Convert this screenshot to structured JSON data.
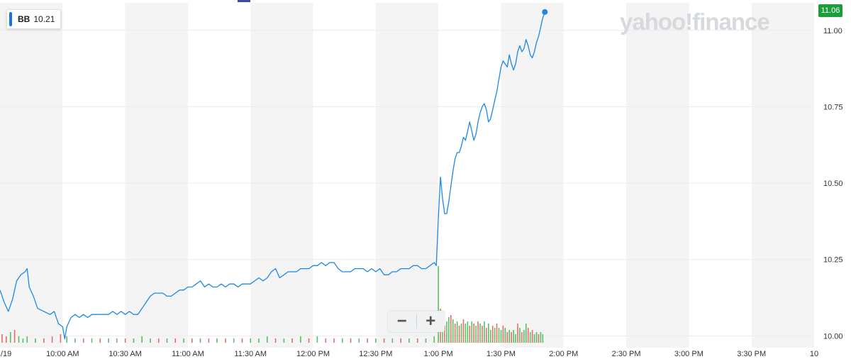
{
  "legend": {
    "symbol": "BB",
    "value": "10.21",
    "color": "#1a73e8"
  },
  "brand": "yahoo!finance",
  "last_price_label": "11.06",
  "zoom": {
    "minus": "−",
    "plus": "+"
  },
  "colors": {
    "line": "#1e88e5",
    "up": "#39b54a",
    "down": "#e5534b",
    "band": "#f4f4f5",
    "grid": "#ececee",
    "last": "#1a9e3a"
  },
  "chart_data": {
    "type": "line",
    "symbol": "BB",
    "ylim": [
      9.98,
      11.09
    ],
    "yticks": [
      10.0,
      10.25,
      10.5,
      10.75,
      11.0
    ],
    "ytick_labels": [
      "10.00",
      "10.25",
      "10.50",
      "10.75",
      "11.00"
    ],
    "x_domain": [
      "09:30",
      "16:00"
    ],
    "xticks": [
      "09:30",
      "10:00",
      "10:30",
      "11:00",
      "11:30",
      "12:00",
      "12:30",
      "13:00",
      "13:30",
      "14:00",
      "14:30",
      "15:00",
      "15:30",
      "16:00"
    ],
    "xtick_labels": [
      "/19",
      "10:00 AM",
      "10:30 AM",
      "11:00 AM",
      "11:30 AM",
      "12:00 PM",
      "12:30 PM",
      "1:00 PM",
      "1:30 PM",
      "2:00 PM",
      "2:30 PM",
      "3:00 PM",
      "3:30 PM",
      "10"
    ],
    "last_price": 11.06,
    "series": [
      {
        "values": [
          [
            "09:30",
            10.15
          ],
          [
            "09:32",
            10.11
          ],
          [
            "09:34",
            10.08
          ],
          [
            "09:36",
            10.12
          ],
          [
            "09:38",
            10.18
          ],
          [
            "09:40",
            10.2
          ],
          [
            "09:42",
            10.21
          ],
          [
            "09:43",
            10.22
          ],
          [
            "09:44",
            10.16
          ],
          [
            "09:46",
            10.13
          ],
          [
            "09:48",
            10.09
          ],
          [
            "09:51",
            10.08
          ],
          [
            "09:54",
            10.07
          ],
          [
            "09:56",
            10.08
          ],
          [
            "09:58",
            10.04
          ],
          [
            "10:00",
            10.03
          ],
          [
            "10:01",
            9.99
          ],
          [
            "10:02",
            10.03
          ],
          [
            "10:04",
            10.06
          ],
          [
            "10:06",
            10.07
          ],
          [
            "10:08",
            10.06
          ],
          [
            "10:10",
            10.07
          ],
          [
            "10:12",
            10.06
          ],
          [
            "10:14",
            10.07
          ],
          [
            "10:16",
            10.07
          ],
          [
            "10:18",
            10.07
          ],
          [
            "10:20",
            10.07
          ],
          [
            "10:22",
            10.07
          ],
          [
            "10:24",
            10.08
          ],
          [
            "10:26",
            10.07
          ],
          [
            "10:28",
            10.08
          ],
          [
            "10:30",
            10.07
          ],
          [
            "10:32",
            10.08
          ],
          [
            "10:34",
            10.07
          ],
          [
            "10:36",
            10.07
          ],
          [
            "10:38",
            10.09
          ],
          [
            "10:40",
            10.11
          ],
          [
            "10:42",
            10.13
          ],
          [
            "10:44",
            10.14
          ],
          [
            "10:46",
            10.14
          ],
          [
            "10:48",
            10.14
          ],
          [
            "10:50",
            10.13
          ],
          [
            "10:52",
            10.13
          ],
          [
            "10:54",
            10.14
          ],
          [
            "10:56",
            10.15
          ],
          [
            "10:58",
            10.15
          ],
          [
            "11:00",
            10.16
          ],
          [
            "11:02",
            10.16
          ],
          [
            "11:04",
            10.17
          ],
          [
            "11:06",
            10.18
          ],
          [
            "11:08",
            10.16
          ],
          [
            "11:10",
            10.17
          ],
          [
            "11:12",
            10.16
          ],
          [
            "11:14",
            10.16
          ],
          [
            "11:16",
            10.17
          ],
          [
            "11:18",
            10.16
          ],
          [
            "11:20",
            10.17
          ],
          [
            "11:22",
            10.17
          ],
          [
            "11:24",
            10.16
          ],
          [
            "11:26",
            10.17
          ],
          [
            "11:28",
            10.17
          ],
          [
            "11:30",
            10.17
          ],
          [
            "11:32",
            10.18
          ],
          [
            "11:34",
            10.19
          ],
          [
            "11:36",
            10.18
          ],
          [
            "11:38",
            10.19
          ],
          [
            "11:40",
            10.21
          ],
          [
            "11:42",
            10.22
          ],
          [
            "11:44",
            10.19
          ],
          [
            "11:46",
            10.2
          ],
          [
            "11:48",
            10.21
          ],
          [
            "11:50",
            10.21
          ],
          [
            "11:52",
            10.21
          ],
          [
            "11:54",
            10.22
          ],
          [
            "11:56",
            10.22
          ],
          [
            "11:58",
            10.22
          ],
          [
            "12:00",
            10.23
          ],
          [
            "12:02",
            10.23
          ],
          [
            "12:04",
            10.24
          ],
          [
            "12:06",
            10.23
          ],
          [
            "12:08",
            10.24
          ],
          [
            "12:10",
            10.24
          ],
          [
            "12:12",
            10.22
          ],
          [
            "12:14",
            10.21
          ],
          [
            "12:16",
            10.21
          ],
          [
            "12:18",
            10.21
          ],
          [
            "12:20",
            10.22
          ],
          [
            "12:22",
            10.22
          ],
          [
            "12:24",
            10.22
          ],
          [
            "12:26",
            10.21
          ],
          [
            "12:28",
            10.22
          ],
          [
            "12:30",
            10.21
          ],
          [
            "12:32",
            10.22
          ],
          [
            "12:34",
            10.2
          ],
          [
            "12:36",
            10.2
          ],
          [
            "12:38",
            10.21
          ],
          [
            "12:40",
            10.21
          ],
          [
            "12:42",
            10.22
          ],
          [
            "12:44",
            10.22
          ],
          [
            "12:46",
            10.22
          ],
          [
            "12:48",
            10.23
          ],
          [
            "12:50",
            10.23
          ],
          [
            "12:52",
            10.22
          ],
          [
            "12:54",
            10.22
          ],
          [
            "12:56",
            10.23
          ],
          [
            "12:58",
            10.24
          ],
          [
            "12:59",
            10.23
          ],
          [
            "13:00",
            10.39
          ],
          [
            "13:01",
            10.52
          ],
          [
            "13:02",
            10.45
          ],
          [
            "13:03",
            10.4
          ],
          [
            "13:04",
            10.4
          ],
          [
            "13:05",
            10.44
          ],
          [
            "13:06",
            10.49
          ],
          [
            "13:07",
            10.54
          ],
          [
            "13:08",
            10.58
          ],
          [
            "13:09",
            10.6
          ],
          [
            "13:10",
            10.6
          ],
          [
            "13:11",
            10.62
          ],
          [
            "13:12",
            10.65
          ],
          [
            "13:13",
            10.64
          ],
          [
            "13:14",
            10.67
          ],
          [
            "13:15",
            10.7
          ],
          [
            "13:16",
            10.67
          ],
          [
            "13:17",
            10.64
          ],
          [
            "13:18",
            10.66
          ],
          [
            "13:19",
            10.7
          ],
          [
            "13:20",
            10.73
          ],
          [
            "13:21",
            10.75
          ],
          [
            "13:22",
            10.76
          ],
          [
            "13:23",
            10.74
          ],
          [
            "13:24",
            10.7
          ],
          [
            "13:25",
            10.71
          ],
          [
            "13:26",
            10.74
          ],
          [
            "13:27",
            10.77
          ],
          [
            "13:28",
            10.8
          ],
          [
            "13:29",
            10.84
          ],
          [
            "13:30",
            10.88
          ],
          [
            "13:31",
            10.9
          ],
          [
            "13:32",
            10.89
          ],
          [
            "13:33",
            10.88
          ],
          [
            "13:34",
            10.92
          ],
          [
            "13:35",
            10.89
          ],
          [
            "13:36",
            10.87
          ],
          [
            "13:37",
            10.89
          ],
          [
            "13:38",
            10.93
          ],
          [
            "13:39",
            10.95
          ],
          [
            "13:40",
            10.93
          ],
          [
            "13:41",
            10.94
          ],
          [
            "13:42",
            10.97
          ],
          [
            "13:43",
            10.95
          ],
          [
            "13:44",
            10.92
          ],
          [
            "13:45",
            10.91
          ],
          [
            "13:46",
            10.93
          ],
          [
            "13:47",
            10.96
          ],
          [
            "13:48",
            10.98
          ],
          [
            "13:49",
            11.01
          ],
          [
            "13:50",
            11.04
          ],
          [
            "13:51",
            11.06
          ]
        ]
      }
    ],
    "volume": {
      "unit": "relative",
      "bars": [
        [
          "09:31",
          0.4,
          "down"
        ],
        [
          "09:33",
          0.3,
          "down"
        ],
        [
          "09:35",
          0.5,
          "up"
        ],
        [
          "09:37",
          0.6,
          "down"
        ],
        [
          "09:39",
          0.3,
          "up"
        ],
        [
          "09:41",
          0.2,
          "up"
        ],
        [
          "09:43",
          0.3,
          "up"
        ],
        [
          "09:47",
          0.2,
          "up"
        ],
        [
          "09:51",
          0.2,
          "down"
        ],
        [
          "09:55",
          0.3,
          "down"
        ],
        [
          "09:59",
          0.4,
          "down"
        ],
        [
          "10:02",
          0.3,
          "up"
        ],
        [
          "10:06",
          0.2,
          "up"
        ],
        [
          "10:10",
          0.2,
          "down"
        ],
        [
          "10:14",
          0.2,
          "up"
        ],
        [
          "10:18",
          0.2,
          "down"
        ],
        [
          "10:22",
          0.2,
          "up"
        ],
        [
          "10:26",
          0.2,
          "up"
        ],
        [
          "10:30",
          0.2,
          "down"
        ],
        [
          "10:34",
          0.2,
          "up"
        ],
        [
          "10:38",
          0.3,
          "up"
        ],
        [
          "10:42",
          0.2,
          "up"
        ],
        [
          "10:46",
          0.2,
          "down"
        ],
        [
          "10:50",
          0.2,
          "up"
        ],
        [
          "10:54",
          0.2,
          "down"
        ],
        [
          "10:58",
          0.2,
          "up"
        ],
        [
          "11:02",
          0.2,
          "down"
        ],
        [
          "11:06",
          0.2,
          "up"
        ],
        [
          "11:10",
          0.2,
          "down"
        ],
        [
          "11:14",
          0.2,
          "up"
        ],
        [
          "11:18",
          0.2,
          "down"
        ],
        [
          "11:22",
          0.2,
          "up"
        ],
        [
          "11:26",
          0.2,
          "down"
        ],
        [
          "11:30",
          0.2,
          "up"
        ],
        [
          "11:34",
          0.2,
          "up"
        ],
        [
          "11:38",
          0.3,
          "up"
        ],
        [
          "11:42",
          0.2,
          "down"
        ],
        [
          "11:46",
          0.2,
          "up"
        ],
        [
          "11:50",
          0.2,
          "down"
        ],
        [
          "11:54",
          0.3,
          "up"
        ],
        [
          "11:58",
          0.2,
          "down"
        ],
        [
          "12:02",
          0.3,
          "up"
        ],
        [
          "12:06",
          0.2,
          "down"
        ],
        [
          "12:10",
          0.2,
          "down"
        ],
        [
          "12:14",
          0.2,
          "up"
        ],
        [
          "12:18",
          0.2,
          "down"
        ],
        [
          "12:22",
          0.2,
          "up"
        ],
        [
          "12:26",
          0.2,
          "down"
        ],
        [
          "12:30",
          0.2,
          "up"
        ],
        [
          "12:34",
          0.2,
          "down"
        ],
        [
          "12:38",
          0.2,
          "up"
        ],
        [
          "12:42",
          0.2,
          "down"
        ],
        [
          "12:46",
          0.2,
          "up"
        ],
        [
          "12:50",
          0.2,
          "down"
        ],
        [
          "12:54",
          0.2,
          "up"
        ],
        [
          "12:58",
          0.3,
          "up"
        ],
        [
          "13:00",
          3.6,
          "up"
        ],
        [
          "13:01",
          1.6,
          "down"
        ],
        [
          "13:02",
          1.2,
          "up"
        ],
        [
          "13:03",
          0.8,
          "down"
        ],
        [
          "13:04",
          1.0,
          "up"
        ],
        [
          "13:05",
          1.2,
          "up"
        ],
        [
          "13:06",
          1.3,
          "down"
        ],
        [
          "13:07",
          1.1,
          "up"
        ],
        [
          "13:08",
          0.9,
          "down"
        ],
        [
          "13:09",
          1.0,
          "up"
        ],
        [
          "13:10",
          0.8,
          "down"
        ],
        [
          "13:11",
          0.9,
          "up"
        ],
        [
          "13:12",
          1.1,
          "down"
        ],
        [
          "13:13",
          0.9,
          "up"
        ],
        [
          "13:14",
          1.0,
          "up"
        ],
        [
          "13:15",
          0.8,
          "down"
        ],
        [
          "13:16",
          1.0,
          "up"
        ],
        [
          "13:17",
          0.9,
          "down"
        ],
        [
          "13:18",
          0.8,
          "up"
        ],
        [
          "13:19",
          1.0,
          "down"
        ],
        [
          "13:20",
          0.9,
          "up"
        ],
        [
          "13:21",
          0.8,
          "down"
        ],
        [
          "13:22",
          1.0,
          "up"
        ],
        [
          "13:23",
          0.7,
          "down"
        ],
        [
          "13:24",
          0.9,
          "up"
        ],
        [
          "13:25",
          0.6,
          "up"
        ],
        [
          "13:26",
          0.8,
          "down"
        ],
        [
          "13:27",
          0.7,
          "up"
        ],
        [
          "13:28",
          0.9,
          "down"
        ],
        [
          "13:29",
          0.7,
          "up"
        ],
        [
          "13:30",
          0.6,
          "up"
        ],
        [
          "13:31",
          0.8,
          "down"
        ],
        [
          "13:32",
          0.7,
          "up"
        ],
        [
          "13:33",
          0.5,
          "down"
        ],
        [
          "13:34",
          0.6,
          "up"
        ],
        [
          "13:35",
          0.5,
          "down"
        ],
        [
          "13:36",
          0.6,
          "up"
        ],
        [
          "13:37",
          0.4,
          "up"
        ],
        [
          "13:38",
          0.9,
          "down"
        ],
        [
          "13:39",
          0.7,
          "up"
        ],
        [
          "13:40",
          0.5,
          "down"
        ],
        [
          "13:41",
          0.6,
          "up"
        ],
        [
          "13:42",
          0.9,
          "up"
        ],
        [
          "13:43",
          0.7,
          "down"
        ],
        [
          "13:44",
          0.5,
          "up"
        ],
        [
          "13:45",
          0.6,
          "down"
        ],
        [
          "13:46",
          0.4,
          "up"
        ],
        [
          "13:47",
          0.5,
          "up"
        ],
        [
          "13:48",
          0.4,
          "down"
        ],
        [
          "13:49",
          0.5,
          "up"
        ],
        [
          "13:50",
          0.4,
          "up"
        ]
      ]
    }
  }
}
